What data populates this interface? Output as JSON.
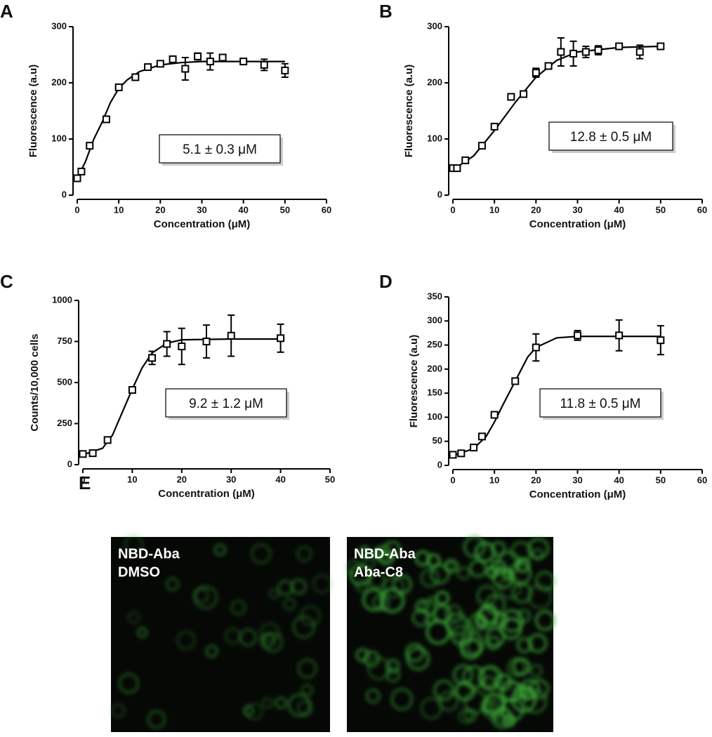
{
  "chart_data": [
    {
      "type": "scatter",
      "panel_label": "A",
      "annotation": "5.1 ± 0.3 μM",
      "xlabel": "Concentration (μM)",
      "ylabel": "Fluorescence (a.u)",
      "x": [
        0,
        1,
        3,
        7,
        10,
        14,
        17,
        20,
        23,
        26,
        29,
        32,
        35,
        40,
        45,
        50
      ],
      "values": [
        30,
        42,
        88,
        135,
        192,
        210,
        228,
        234,
        242,
        225,
        247,
        238,
        245,
        238,
        232,
        222
      ],
      "errors": [
        5,
        4,
        4,
        4,
        4,
        4,
        4,
        4,
        4,
        20,
        6,
        15,
        5,
        4,
        10,
        12
      ],
      "fit_x": [
        0,
        2,
        4,
        6,
        8,
        10,
        12,
        15,
        20,
        25,
        30,
        40,
        50
      ],
      "fit_values": [
        30,
        60,
        100,
        130,
        165,
        190,
        205,
        220,
        232,
        236,
        238,
        238,
        238
      ],
      "xlim": [
        0,
        60
      ],
      "xticks": [
        0,
        10,
        20,
        30,
        40,
        50,
        60
      ],
      "ylim": [
        0,
        300
      ],
      "yticks": [
        0,
        100,
        200,
        300
      ],
      "color": "#000000"
    },
    {
      "type": "scatter",
      "panel_label": "B",
      "annotation": "12.8 ± 0.5 μM",
      "xlabel": "Concentration (μM)",
      "ylabel": "Fluorescence (a.u)",
      "x": [
        0,
        1,
        3,
        7,
        10,
        14,
        17,
        20,
        23,
        26,
        29,
        32,
        35,
        40,
        45,
        50
      ],
      "values": [
        48,
        48,
        62,
        88,
        122,
        175,
        180,
        218,
        230,
        255,
        252,
        255,
        258,
        265,
        255,
        265
      ],
      "errors": [
        4,
        4,
        4,
        4,
        4,
        4,
        4,
        8,
        4,
        25,
        22,
        10,
        8,
        4,
        12,
        4
      ],
      "fit_x": [
        0,
        5,
        10,
        15,
        20,
        25,
        30,
        40,
        50
      ],
      "fit_values": [
        45,
        70,
        115,
        165,
        210,
        240,
        255,
        263,
        265
      ],
      "xlim": [
        0,
        60
      ],
      "xticks": [
        0,
        10,
        20,
        30,
        40,
        50,
        60
      ],
      "ylim": [
        0,
        300
      ],
      "yticks": [
        0,
        100,
        200,
        300
      ],
      "color": "#000000"
    },
    {
      "type": "scatter",
      "panel_label": "C",
      "annotation": "9.2 ± 1.2 μM",
      "xlabel": "Concentration (μM)",
      "ylabel": "Counts/10,000 cells",
      "x": [
        0,
        2,
        5,
        10,
        14,
        17,
        20,
        25,
        30,
        40
      ],
      "values": [
        65,
        70,
        150,
        455,
        650,
        735,
        720,
        750,
        785,
        770
      ],
      "errors": [
        10,
        10,
        10,
        15,
        40,
        75,
        110,
        100,
        125,
        85
      ],
      "fit_x": [
        0,
        4,
        6,
        8,
        10,
        12,
        14,
        17,
        20,
        30,
        40
      ],
      "fit_values": [
        60,
        100,
        180,
        320,
        460,
        590,
        680,
        740,
        760,
        765,
        765
      ],
      "xlim": [
        0,
        50
      ],
      "xticks": [
        0,
        10,
        20,
        30,
        40,
        50
      ],
      "ylim": [
        0,
        1000
      ],
      "yticks": [
        0,
        250,
        500,
        750,
        1000
      ],
      "color": "#000000"
    },
    {
      "type": "scatter",
      "panel_label": "D",
      "annotation": "11.8 ± 0.5 μM",
      "xlabel": "Concentration (μM)",
      "ylabel": "Fluorescence (a.u)",
      "x": [
        0,
        2,
        5,
        7,
        10,
        15,
        20,
        30,
        40,
        50
      ],
      "values": [
        22,
        25,
        37,
        60,
        105,
        175,
        245,
        270,
        270,
        260
      ],
      "errors": [
        5,
        3,
        5,
        6,
        5,
        5,
        28,
        10,
        32,
        30
      ],
      "fit_x": [
        0,
        5,
        8,
        10,
        12,
        15,
        18,
        20,
        25,
        30,
        50
      ],
      "fit_values": [
        20,
        35,
        60,
        90,
        125,
        175,
        225,
        245,
        265,
        268,
        268
      ],
      "xlim": [
        0,
        60
      ],
      "xticks": [
        0,
        10,
        20,
        30,
        40,
        50,
        60
      ],
      "ylim": [
        0,
        350
      ],
      "yticks": [
        0,
        50,
        100,
        150,
        200,
        250,
        300,
        350
      ],
      "color": "#000000"
    }
  ],
  "images": {
    "panel_label": "E",
    "items": [
      {
        "lines": [
          "NBD-Aba",
          "DMSO"
        ]
      },
      {
        "lines": [
          "NBD-Aba",
          "Aba-C8"
        ]
      }
    ]
  }
}
